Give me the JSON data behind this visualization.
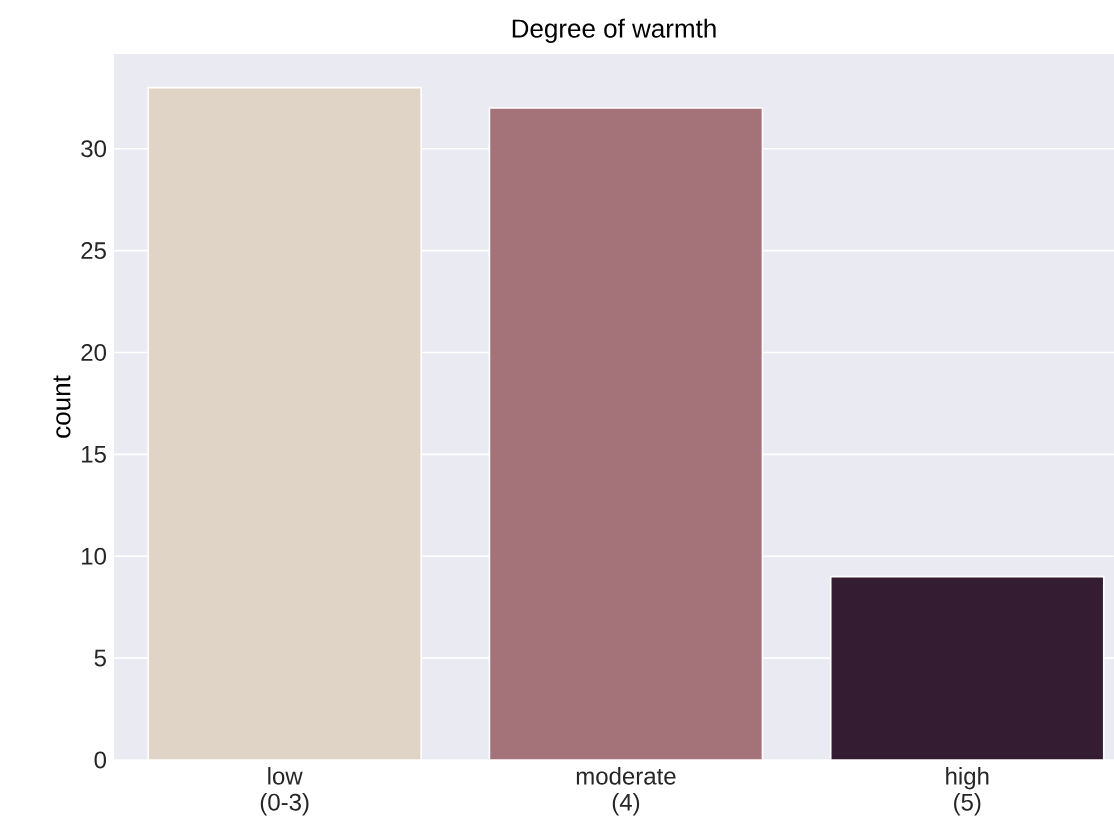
{
  "chart_data": {
    "type": "bar",
    "title": "Degree of warmth",
    "ylabel": "count",
    "categories": [
      "low\n(0-3)",
      "moderate\n(4)",
      "high\n(5)"
    ],
    "values": [
      33,
      32,
      9
    ],
    "colors": [
      "#e0d4c6",
      "#a37379",
      "#341d33"
    ],
    "ylim": [
      0,
      34.65
    ],
    "yticks": [
      0,
      5,
      10,
      15,
      20,
      25,
      30
    ],
    "grid": "y"
  }
}
